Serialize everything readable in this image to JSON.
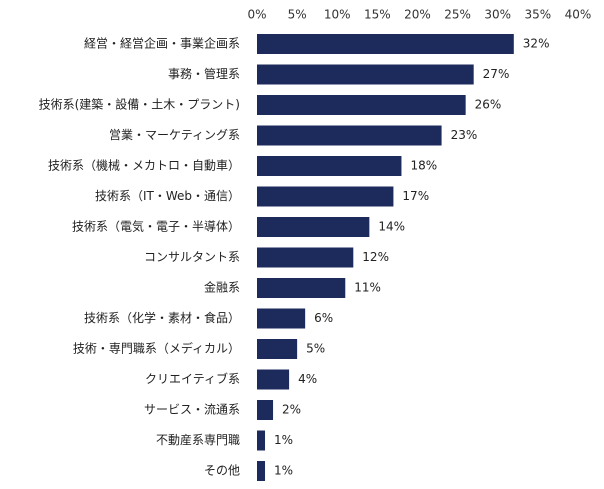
{
  "chart_data": {
    "type": "bar",
    "orientation": "horizontal",
    "title": "",
    "xlabel": "",
    "ylabel": "",
    "xlim": [
      0,
      40
    ],
    "x_ticks": [
      "0%",
      "5%",
      "10%",
      "15%",
      "20%",
      "25%",
      "30%",
      "35%",
      "40%"
    ],
    "x_tick_values": [
      0,
      5,
      10,
      15,
      20,
      25,
      30,
      35,
      40
    ],
    "categories": [
      "経営・経営企画・事業企画系",
      "事務・管理系",
      "技術系(建築・設備・土木・プラント)",
      "営業・マーケティング系",
      "技術系（機械・メカトロ・自動車）",
      "技術系（IT・Web・通信）",
      "技術系（電気・電子・半導体）",
      "コンサルタント系",
      "金融系",
      "技術系（化学・素材・食品）",
      "技術・専門職系（メディカル）",
      "クリエイティブ系",
      "サービス・流通系",
      "不動産系専門職",
      "その他"
    ],
    "values": [
      32,
      27,
      26,
      23,
      18,
      17,
      14,
      12,
      11,
      6,
      5,
      4,
      2,
      1,
      1
    ],
    "value_labels": [
      "32%",
      "27%",
      "26%",
      "23%",
      "18%",
      "17%",
      "14%",
      "12%",
      "11%",
      "6%",
      "5%",
      "4%",
      "2%",
      "1%",
      "1%"
    ],
    "grid": false,
    "bar_color": "#1c2a5c"
  }
}
